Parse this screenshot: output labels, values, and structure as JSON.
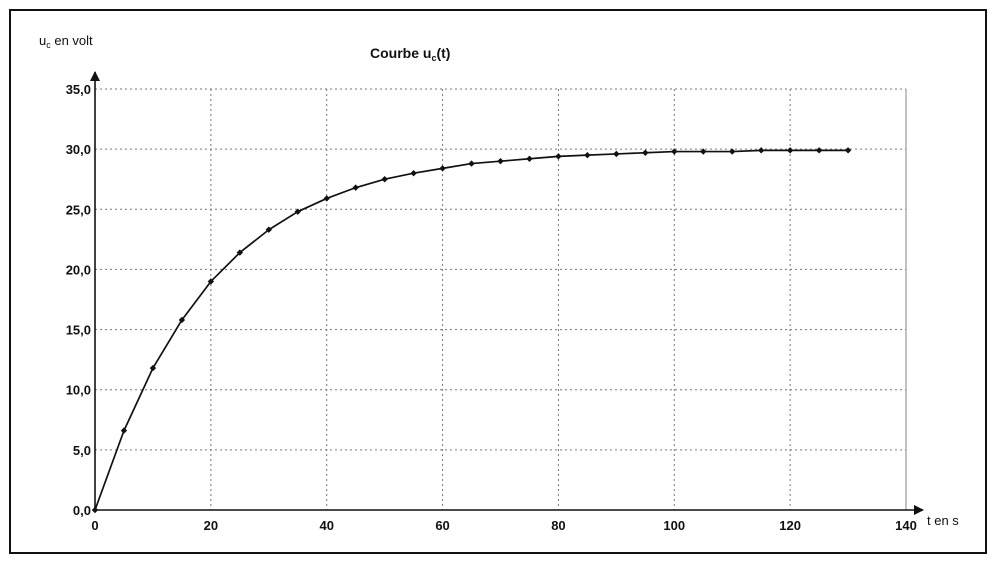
{
  "chart_data": {
    "type": "line",
    "title": "Courbe u",
    "title_sub": "c",
    "title_suffix": "(t)",
    "ylabel_main": "u",
    "ylabel_sub": "c",
    "ylabel_suffix": " en volt",
    "xlabel": "t en s",
    "xlim": [
      0,
      140
    ],
    "ylim": [
      0,
      35
    ],
    "x_ticks": [
      "0",
      "20",
      "40",
      "60",
      "80",
      "100",
      "120",
      "140"
    ],
    "y_ticks": [
      "0,0",
      "5,0",
      "10,0",
      "15,0",
      "20,0",
      "25,0",
      "30,0",
      "35,0"
    ],
    "grid": true,
    "series": [
      {
        "x": [
          0,
          5,
          10,
          15,
          20,
          25,
          30,
          35,
          40,
          45,
          50,
          55,
          60,
          65,
          70,
          75,
          80,
          85,
          90,
          95,
          100,
          105,
          110,
          115,
          120,
          125,
          130
        ],
        "values": [
          0,
          6.6,
          11.8,
          15.8,
          19.0,
          21.4,
          23.3,
          24.8,
          25.9,
          26.8,
          27.5,
          28.0,
          28.4,
          28.8,
          29.0,
          29.2,
          29.4,
          29.5,
          29.6,
          29.7,
          29.8,
          29.8,
          29.8,
          29.9,
          29.9,
          29.9,
          29.9
        ]
      }
    ]
  }
}
